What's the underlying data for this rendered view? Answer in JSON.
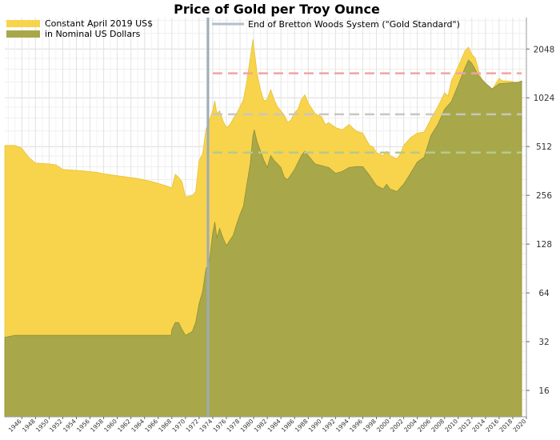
{
  "chart_data": {
    "type": "area",
    "title": "Price of Gold per Troy Ounce",
    "y_scale": "log2",
    "ylim": [
      11,
      3200
    ],
    "xlim": [
      1943.5,
      2020
    ],
    "y_ticks": [
      16,
      32,
      64,
      128,
      256,
      512,
      1024,
      2048
    ],
    "x_ticks": [
      1946,
      1948,
      1950,
      1952,
      1954,
      1956,
      1958,
      1960,
      1962,
      1964,
      1966,
      1968,
      1970,
      1972,
      1974,
      1976,
      1978,
      1980,
      1982,
      1984,
      1986,
      1988,
      1990,
      1992,
      1994,
      1996,
      1998,
      2000,
      2002,
      2004,
      2006,
      2008,
      2010,
      2012,
      2014,
      2016,
      2018,
      2020
    ],
    "grid": true,
    "legend_position": "top-left",
    "legend": [
      {
        "label": "Constant April 2019 US$",
        "color": "#f7d44c"
      },
      {
        "label": "in Nominal US Dollars",
        "color": "#a8a84a"
      },
      {
        "label": "End of Bretton Woods System (\"Gold Standard\")",
        "color": "#b3bfcc"
      }
    ],
    "vline": {
      "x": 1973.3,
      "color": "#9eaab8"
    },
    "hlines": [
      {
        "y": 1450,
        "color": "#f2a3a3"
      },
      {
        "y": 810,
        "color": "#c9c6c0"
      },
      {
        "y": 470,
        "color": "#b8c98a"
      }
    ],
    "series": [
      {
        "name": "Constant April 2019 US$",
        "color": "#f7d44c",
        "x": [
          1943.5,
          1945,
          1946,
          1947,
          1948,
          1950,
          1951,
          1952,
          1955,
          1957,
          1958,
          1960,
          1963,
          1965,
          1967,
          1968,
          1968.5,
          1969,
          1969.5,
          1970,
          1971,
          1971.5,
          1972,
          1972.5,
          1973,
          1973.5,
          1974,
          1974.3,
          1974.6,
          1975,
          1975.5,
          1976,
          1976.5,
          1977,
          1977.5,
          1978,
          1978.5,
          1979,
          1979.5,
          1979.9,
          1980.1,
          1980.5,
          1981,
          1981.5,
          1982,
          1982.5,
          1983,
          1983.5,
          1984,
          1984.5,
          1985,
          1985.5,
          1986,
          1986.5,
          1987,
          1987.5,
          1988,
          1989,
          1990,
          1990.5,
          1991,
          1992,
          1993,
          1994,
          1995,
          1996,
          1997,
          1997.5,
          1998,
          1999,
          1999.5,
          2000,
          2001,
          2001.5,
          2002,
          2003,
          2004,
          2005,
          2006,
          2007,
          2008,
          2008.5,
          2009,
          2010,
          2011,
          2011.5,
          2012,
          2012.5,
          2013,
          2013.5,
          2014,
          2015,
          2015.5,
          2016,
          2016.5,
          2017,
          2018,
          2018.5,
          2019,
          2019.3
        ],
        "y": [
          520,
          520,
          500,
          440,
          405,
          400,
          395,
          370,
          362,
          355,
          348,
          338,
          325,
          312,
          295,
          285,
          345,
          330,
          310,
          250,
          255,
          270,
          420,
          460,
          650,
          740,
          860,
          980,
          820,
          850,
          740,
          670,
          700,
          760,
          820,
          900,
          1000,
          1300,
          1800,
          2350,
          2000,
          1450,
          1150,
          980,
          1000,
          1150,
          1000,
          900,
          850,
          800,
          720,
          750,
          830,
          870,
          1000,
          1070,
          950,
          820,
          780,
          700,
          720,
          670,
          650,
          700,
          640,
          620,
          520,
          510,
          470,
          450,
          480,
          450,
          430,
          460,
          520,
          580,
          620,
          630,
          760,
          900,
          1100,
          1050,
          1300,
          1600,
          2000,
          2100,
          1900,
          1800,
          1500,
          1300,
          1200,
          1160,
          1250,
          1350,
          1300,
          1300,
          1290,
          1260,
          1290,
          1300
        ]
      },
      {
        "name": "in Nominal US Dollars",
        "color": "#a8a84a",
        "x": [
          1943.5,
          1945,
          1950,
          1955,
          1960,
          1965,
          1967,
          1967.9,
          1968,
          1968.5,
          1969,
          1969.5,
          1970,
          1971,
          1971.5,
          1972,
          1972.5,
          1973,
          1973.5,
          1974,
          1974.3,
          1974.6,
          1975,
          1975.5,
          1976,
          1976.5,
          1977,
          1977.5,
          1978,
          1978.5,
          1979,
          1979.5,
          1979.9,
          1980.1,
          1980.5,
          1981,
          1981.5,
          1982,
          1982.5,
          1983,
          1983.5,
          1984,
          1984.5,
          1985,
          1986,
          1987,
          1987.5,
          1988,
          1989,
          1990,
          1991,
          1992,
          1993,
          1994,
          1995,
          1996,
          1997,
          1998,
          1999,
          1999.5,
          2000,
          2001,
          2002,
          2003,
          2004,
          2005,
          2006,
          2007,
          2008,
          2009,
          2010,
          2011,
          2011.5,
          2012,
          2013,
          2014,
          2015,
          2016,
          2017,
          2018,
          2019,
          2019.3
        ],
        "y": [
          34,
          35,
          35,
          35,
          35,
          35,
          35,
          35,
          38,
          42,
          42,
          38,
          35,
          37,
          42,
          55,
          65,
          90,
          100,
          150,
          175,
          140,
          160,
          140,
          125,
          135,
          145,
          170,
          195,
          220,
          300,
          400,
          600,
          650,
          550,
          480,
          420,
          380,
          450,
          420,
          400,
          380,
          330,
          320,
          370,
          450,
          480,
          450,
          400,
          390,
          380,
          350,
          360,
          380,
          385,
          385,
          340,
          295,
          280,
          300,
          280,
          270,
          300,
          350,
          410,
          440,
          600,
          700,
          870,
          970,
          1230,
          1570,
          1750,
          1670,
          1400,
          1260,
          1160,
          1250,
          1260,
          1270,
          1280,
          1300
        ]
      }
    ]
  }
}
